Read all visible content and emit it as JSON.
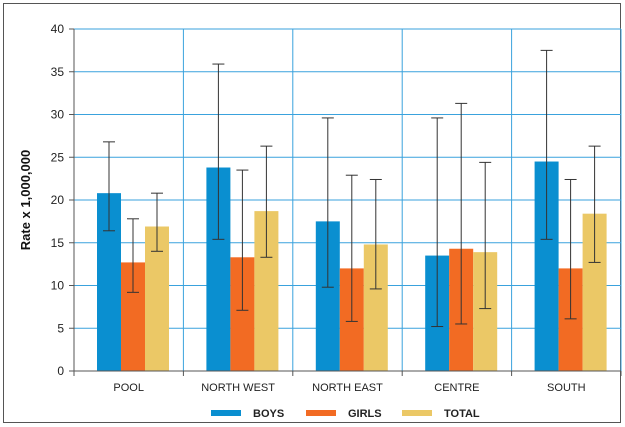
{
  "chart_data": {
    "type": "bar",
    "ylabel": "Rate x 1,000,000",
    "ylim": [
      0,
      40
    ],
    "yticks": [
      0,
      5,
      10,
      15,
      20,
      25,
      30,
      35,
      40
    ],
    "grid": true,
    "legend_position": "bottom",
    "categories": [
      "POOL",
      "NORTH WEST",
      "NORTH EAST",
      "CENTRE",
      "SOUTH"
    ],
    "series": [
      {
        "name": "BOYS",
        "color": "#0a8fd0",
        "values": [
          20.8,
          23.8,
          17.5,
          13.5,
          24.5
        ],
        "error_low": [
          16.4,
          15.4,
          9.8,
          5.2,
          15.4
        ],
        "error_high": [
          26.8,
          35.9,
          29.6,
          29.6,
          37.5
        ]
      },
      {
        "name": "GIRLS",
        "color": "#f26b23",
        "values": [
          12.7,
          13.3,
          12.0,
          14.3,
          12.0
        ],
        "error_low": [
          9.2,
          7.1,
          5.8,
          5.5,
          6.1
        ],
        "error_high": [
          17.8,
          23.5,
          22.9,
          31.3,
          22.4
        ]
      },
      {
        "name": "TOTAL",
        "color": "#ebc866",
        "values": [
          16.9,
          18.7,
          14.8,
          13.9,
          18.4
        ],
        "error_low": [
          14.0,
          13.3,
          9.6,
          7.3,
          12.7
        ],
        "error_high": [
          20.8,
          26.3,
          22.4,
          24.4,
          26.3
        ]
      }
    ]
  }
}
